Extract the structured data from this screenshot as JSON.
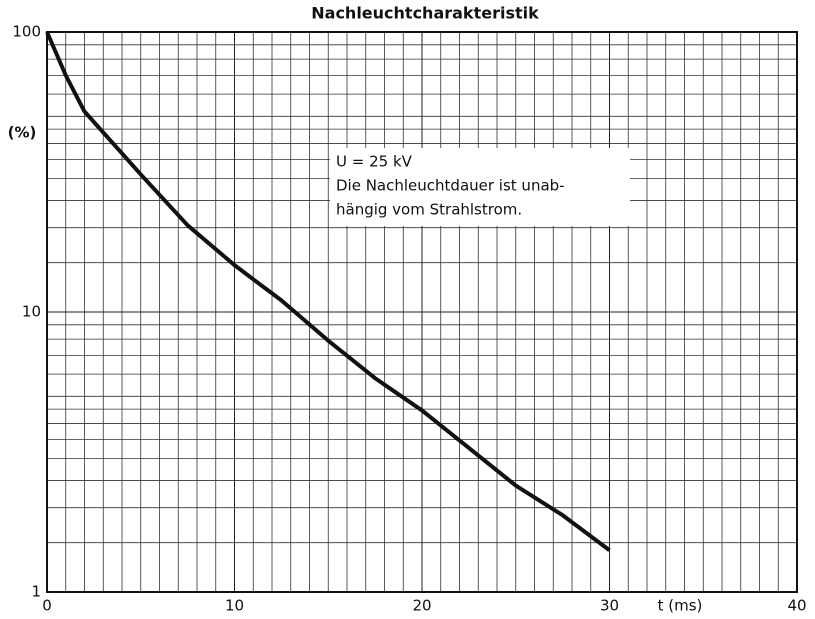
{
  "chart_data": {
    "type": "line",
    "title": "Nachleuchtcharakteristik",
    "ylabel": "(%)",
    "xlabel": "t (ms)",
    "annotation": [
      "U = 25 kV",
      "Die Nachleuchtdauer ist unab-",
      "hängig vom Strahlstrom."
    ],
    "x": [
      0,
      1,
      2,
      5,
      7.5,
      10,
      12.5,
      15,
      17.5,
      20,
      22.5,
      25,
      27.5,
      30
    ],
    "series": [
      {
        "name": "Nachleuchtdauer",
        "color": "#111111",
        "values": [
          100,
          70,
          52,
          31,
          20.4,
          14.7,
          11,
          7.9,
          5.8,
          4.45,
          3.27,
          2.4,
          1.88,
          1.41
        ]
      }
    ],
    "xlim": [
      0,
      40
    ],
    "xticks": [
      0,
      10,
      20,
      30,
      40
    ],
    "ylim": [
      1,
      100
    ],
    "yticks": [
      1,
      10,
      100
    ],
    "log_y": true,
    "grid": true,
    "minor_grid": true
  }
}
